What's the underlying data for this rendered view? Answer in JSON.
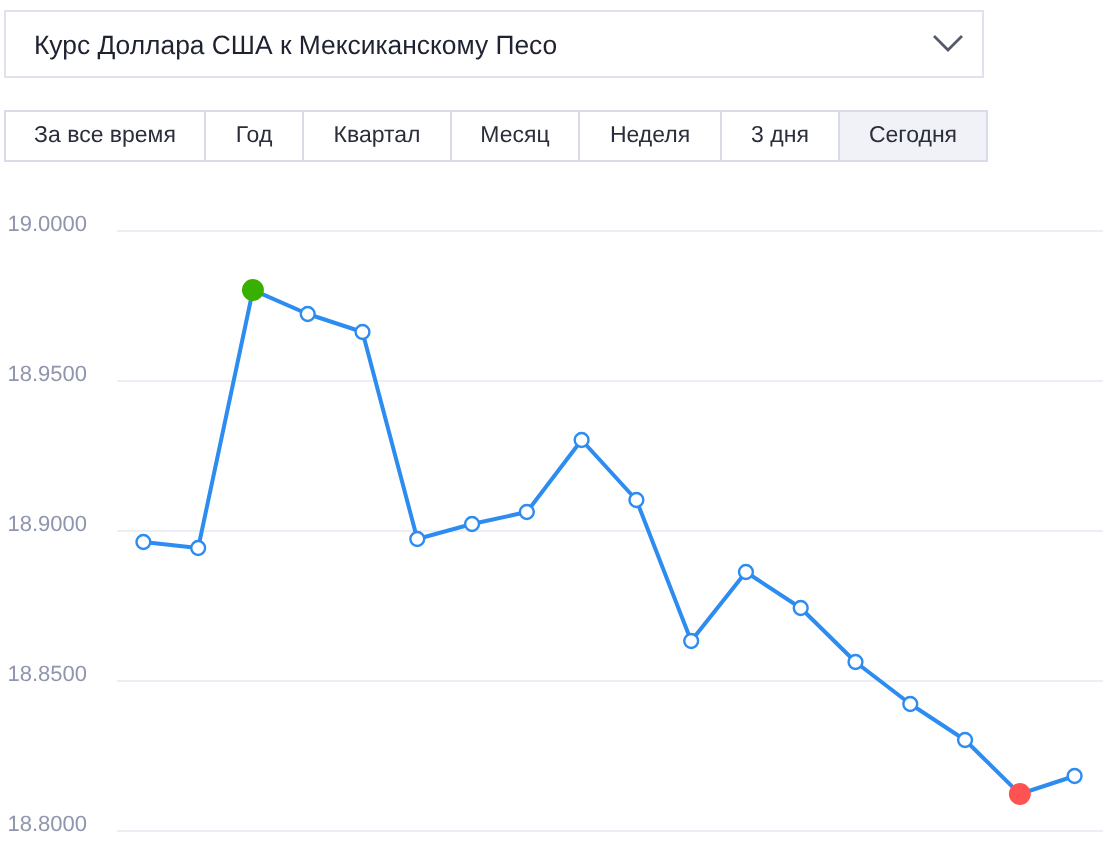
{
  "chart_data": {
    "type": "line",
    "title": "Курс Доллара США к Мексиканскому Песо",
    "annotations": [
      "За все время",
      "Год",
      "Квартал",
      "Месяц",
      "Неделя",
      "3 дня",
      "Сегодня"
    ],
    "categories": [
      null,
      null,
      null,
      null,
      null,
      null,
      null,
      null,
      null,
      null,
      null,
      null,
      null,
      null,
      null,
      null,
      null,
      null
    ],
    "values": [
      18.896,
      18.894,
      18.98,
      18.972,
      18.966,
      18.897,
      18.902,
      18.906,
      18.93,
      18.91,
      18.863,
      18.886,
      18.874,
      18.856,
      18.842,
      18.83,
      18.812,
      18.818
    ],
    "color": "#2d8cf0",
    "colors": [
      null,
      null,
      "#38b000",
      null,
      null,
      null,
      null,
      null,
      null,
      null,
      null,
      null,
      null,
      null,
      null,
      null,
      "#ff5252",
      null
    ],
    "ylim": [
      18.8,
      19.0
    ],
    "yticks": [
      {
        "value": 18.8,
        "label": "18.8000"
      },
      {
        "value": 18.85,
        "label": "18.8500"
      },
      {
        "value": 18.9,
        "label": "18.9000"
      },
      {
        "value": 18.95,
        "label": "18.9500"
      },
      {
        "value": 19.0,
        "label": "19.0000"
      }
    ],
    "grid": "y",
    "tick_labels": "y",
    "marker": "circle",
    "line_style": "solid"
  }
}
